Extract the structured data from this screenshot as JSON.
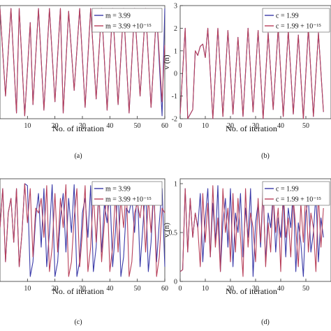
{
  "chart_data": [
    {
      "type": "line",
      "caption": "(a)",
      "xlabel": "No. of iteration",
      "ylabel": "",
      "xlim": [
        0,
        60
      ],
      "ylim": [
        -2,
        2
      ],
      "xticks": [
        "10",
        "20",
        "30",
        "40",
        "50",
        "60"
      ],
      "yticks": [],
      "legend_position": "top-right",
      "series": [
        {
          "name": "m = 3.99",
          "color": "#3a3aa8",
          "x": [
            0,
            2,
            4,
            6,
            7,
            9,
            11,
            12,
            14,
            16,
            18,
            20,
            22,
            23,
            25,
            27,
            29,
            31,
            33,
            35,
            37,
            39,
            41,
            43,
            45,
            47,
            49,
            51,
            53,
            55,
            57,
            59,
            60
          ],
          "y": [
            1.9,
            -1.2,
            1.9,
            -1.8,
            1.9,
            -1.9,
            1.4,
            -1.5,
            1.9,
            -1.7,
            1.9,
            -1.4,
            1.9,
            -1.8,
            1.8,
            -1.0,
            1.9,
            -1.6,
            1.9,
            -1.3,
            1.9,
            -1.7,
            1.9,
            -1.5,
            1.9,
            -1.8,
            1.9,
            -1.2,
            1.9,
            -1.6,
            1.8,
            -1.9,
            1.9
          ]
        },
        {
          "name": "m = 3.99 +10⁻¹⁵",
          "color": "#b8405a",
          "x": [
            0,
            2,
            4,
            6,
            7,
            9,
            11,
            12,
            14,
            16,
            18,
            20,
            22,
            23,
            25,
            27,
            29,
            31,
            33,
            35,
            37,
            39,
            41,
            43,
            45,
            47,
            49,
            51,
            53,
            55,
            57,
            59,
            60
          ],
          "y": [
            1.9,
            -1.2,
            1.9,
            -1.8,
            1.9,
            -1.9,
            1.4,
            -1.5,
            1.9,
            -1.7,
            1.9,
            -1.4,
            1.9,
            -1.8,
            1.8,
            -1.0,
            1.9,
            -1.6,
            1.9,
            -1.3,
            1.9,
            -1.7,
            1.9,
            -1.5,
            1.9,
            -1.8,
            1.9,
            -1.2,
            1.9,
            -1.6,
            1.8,
            -1.4,
            0.6
          ]
        }
      ]
    },
    {
      "type": "line",
      "caption": "(b)",
      "xlabel": "No. of iteration",
      "ylabel": "v (n)",
      "xlim": [
        0,
        60
      ],
      "ylim": [
        -2,
        3
      ],
      "xticks": [
        "0",
        "10",
        "20",
        "30",
        "40",
        "50"
      ],
      "yticks": [
        "-2",
        "-1",
        "0",
        "1",
        "2",
        "3"
      ],
      "legend_position": "top-right",
      "series": [
        {
          "name": "c = 1.99",
          "color": "#3a3aa8",
          "x": [
            0,
            2,
            3,
            5,
            6,
            7,
            8,
            9,
            10,
            11,
            13,
            15,
            17,
            19,
            21,
            23,
            25,
            27,
            29,
            31,
            33,
            35,
            37,
            39,
            41,
            43,
            45,
            47,
            49,
            51,
            53,
            55,
            57
          ],
          "y": [
            -1.8,
            2.0,
            -2.0,
            -1.6,
            1.0,
            0.8,
            1.2,
            1.3,
            0.7,
            2.0,
            -2.0,
            2.0,
            -1.9,
            1.9,
            -1.8,
            1.6,
            -1.9,
            2.0,
            -1.7,
            1.9,
            -2.0,
            1.8,
            -1.6,
            2.0,
            -1.9,
            1.9,
            -1.8,
            1.7,
            -2.0,
            2.0,
            -1.9,
            1.8,
            -1.7
          ]
        },
        {
          "name": "c = 1.99 + 10⁻¹⁵",
          "color": "#b8405a",
          "x": [
            0,
            2,
            3,
            5,
            6,
            7,
            8,
            9,
            10,
            11,
            13,
            15,
            17,
            19,
            21,
            23,
            25,
            27,
            29,
            31,
            33,
            35,
            37,
            39,
            41,
            43,
            45,
            47,
            49,
            51,
            53,
            55,
            57
          ],
          "y": [
            -1.8,
            2.0,
            -2.0,
            -1.6,
            1.0,
            0.8,
            1.2,
            1.3,
            0.7,
            2.0,
            -2.0,
            2.0,
            -1.9,
            1.9,
            -1.8,
            1.6,
            -1.9,
            2.0,
            -1.7,
            1.9,
            -2.0,
            1.8,
            -1.6,
            2.0,
            -1.9,
            1.9,
            -1.8,
            1.7,
            -2.0,
            2.0,
            -1.9,
            1.8,
            -1.7
          ]
        }
      ]
    },
    {
      "type": "line",
      "caption": "(c)",
      "xlabel": "No. of iteration",
      "ylabel": "",
      "xlim": [
        0,
        60
      ],
      "ylim": [
        0,
        1.05
      ],
      "xticks": [
        "10",
        "20",
        "30",
        "40",
        "50",
        "60"
      ],
      "yticks": [],
      "legend_position": "top-right",
      "series": [
        {
          "name": "m = 3.99",
          "color": "#3a3aa8",
          "x": [
            0,
            1,
            2,
            3,
            4,
            5,
            6,
            7,
            8,
            9,
            10,
            11,
            12,
            13,
            14,
            15,
            16,
            17,
            18,
            19,
            20,
            21,
            22,
            23,
            24,
            25,
            26,
            27,
            28,
            29,
            30,
            31,
            32,
            33,
            34,
            35,
            36,
            37,
            38,
            39,
            40,
            41,
            42,
            43,
            44,
            45,
            46,
            47,
            48,
            49,
            50,
            51,
            52,
            53,
            54,
            55,
            56,
            57,
            58,
            59,
            60
          ],
          "y": [
            0.55,
            0.95,
            0.2,
            0.7,
            0.85,
            0.4,
            0.95,
            0.15,
            0.5,
            1.0,
            0.98,
            0.05,
            0.2,
            0.65,
            0.9,
            0.35,
            0.95,
            0.15,
            0.5,
            0.99,
            0.05,
            0.2,
            0.65,
            0.9,
            0.3,
            0.85,
            0.5,
            0.99,
            0.05,
            0.2,
            0.7,
            0.85,
            0.45,
            0.98,
            0.1,
            0.35,
            0.9,
            0.3,
            0.8,
            0.6,
            0.95,
            0.15,
            0.5,
            0.99,
            0.05,
            0.25,
            0.75,
            0.7,
            0.85,
            0.5,
            0.95,
            0.15,
            0.55,
            0.98,
            0.1,
            0.4,
            0.95,
            0.2,
            0.6,
            0.95,
            0.15
          ]
        },
        {
          "name": "m = 3.99 +10⁻¹⁵",
          "color": "#b8405a",
          "x": [
            0,
            1,
            2,
            3,
            4,
            5,
            6,
            7,
            8,
            9,
            10,
            11,
            12,
            13,
            14,
            15,
            16,
            17,
            18,
            19,
            20,
            21,
            22,
            23,
            24,
            25,
            26,
            27,
            28,
            29,
            30,
            31,
            32,
            33,
            34,
            35,
            36,
            37,
            38,
            39,
            40,
            41,
            42,
            43,
            44,
            45,
            46,
            47,
            48,
            49,
            50,
            51,
            52,
            53,
            54,
            55,
            56,
            57,
            58,
            59,
            60
          ],
          "y": [
            0.55,
            0.95,
            0.2,
            0.7,
            0.85,
            0.4,
            0.95,
            0.15,
            0.5,
            1.0,
            0.6,
            0.95,
            0.25,
            0.75,
            0.7,
            0.85,
            0.45,
            0.98,
            0.1,
            0.35,
            0.9,
            0.3,
            0.85,
            0.55,
            0.99,
            0.05,
            0.2,
            0.65,
            0.95,
            0.15,
            0.5,
            0.98,
            0.1,
            0.35,
            0.9,
            0.4,
            0.95,
            0.2,
            0.6,
            0.95,
            0.1,
            0.35,
            0.9,
            0.3,
            0.85,
            0.55,
            0.99,
            0.05,
            0.2,
            0.7,
            0.8,
            0.65,
            0.9,
            0.3,
            0.85,
            0.5,
            0.99,
            0.05,
            0.25,
            0.75,
            0.7
          ]
        }
      ]
    },
    {
      "type": "line",
      "caption": "(d)",
      "xlabel": "No. of iteration",
      "ylabel": "v (n)",
      "xlim": [
        0,
        60
      ],
      "ylim": [
        0,
        1.05
      ],
      "xticks": [
        "0",
        "10",
        "20",
        "30",
        "40",
        "50"
      ],
      "yticks": [
        "0",
        "0.5",
        "1"
      ],
      "legend_position": "top-right",
      "series": [
        {
          "name": "c = 1.99",
          "color": "#3a3aa8",
          "x": [
            0,
            1,
            2,
            3,
            4,
            5,
            6,
            7,
            8,
            9,
            10,
            11,
            12,
            13,
            14,
            15,
            16,
            17,
            18,
            19,
            20,
            21,
            22,
            23,
            24,
            25,
            26,
            27,
            28,
            29,
            30,
            31,
            32,
            33,
            34,
            35,
            36,
            37,
            38,
            39,
            40,
            41,
            42,
            43,
            44,
            45,
            46,
            47,
            48,
            49,
            50,
            51,
            52,
            53,
            54,
            55,
            56,
            57
          ],
          "y": [
            0.1,
            0.12,
            0.95,
            0.3,
            0.85,
            0.45,
            0.7,
            0.55,
            0.9,
            0.2,
            0.65,
            0.95,
            0.25,
            0.8,
            0.4,
            0.98,
            0.1,
            0.6,
            0.85,
            0.35,
            0.95,
            0.15,
            0.7,
            0.5,
            0.9,
            0.25,
            0.75,
            0.45,
            0.95,
            0.05,
            0.6,
            0.8,
            0.35,
            0.92,
            0.2,
            0.7,
            0.55,
            0.9,
            0.3,
            0.65,
            0.45,
            0.85,
            0.25,
            0.75,
            0.55,
            0.95,
            0.1,
            0.6,
            0.4,
            0.05,
            0.7,
            0.85,
            0.3,
            0.5,
            0.9,
            0.2,
            0.65,
            0.45
          ]
        },
        {
          "name": "c = 1.99 + 10⁻¹⁵",
          "color": "#b8405a",
          "x": [
            0,
            1,
            2,
            3,
            4,
            5,
            6,
            7,
            8,
            9,
            10,
            11,
            12,
            13,
            14,
            15,
            16,
            17,
            18,
            19,
            20,
            21,
            22,
            23,
            24,
            25,
            26,
            27,
            28,
            29,
            30,
            31,
            32,
            33,
            34,
            35,
            36,
            37,
            38,
            39,
            40,
            41,
            42,
            43,
            44,
            45,
            46,
            47,
            48,
            49,
            50,
            51,
            52,
            53,
            54,
            55,
            56,
            57
          ],
          "y": [
            0.1,
            0.12,
            0.95,
            0.3,
            0.85,
            0.45,
            0.7,
            0.55,
            0.15,
            0.9,
            0.4,
            0.8,
            0.25,
            0.98,
            0.35,
            0.65,
            0.1,
            0.95,
            0.5,
            0.75,
            0.2,
            0.9,
            0.3,
            0.85,
            0.45,
            0.05,
            0.95,
            0.35,
            0.7,
            0.55,
            0.2,
            0.85,
            0.4,
            0.98,
            0.15,
            0.6,
            0.3,
            0.9,
            0.5,
            0.75,
            0.1,
            0.95,
            0.45,
            0.65,
            0.25,
            0.85,
            0.55,
            0.15,
            0.8,
            0.4,
            0.95,
            0.3,
            0.7,
            0.55,
            0.1,
            0.9,
            0.35,
            0.75
          ]
        }
      ]
    }
  ]
}
